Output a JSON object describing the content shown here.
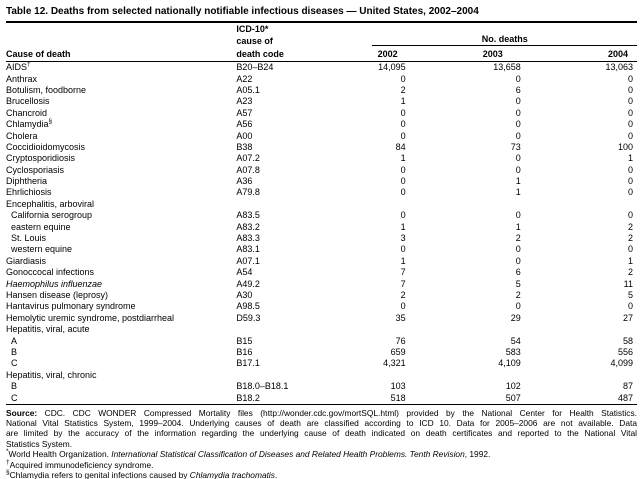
{
  "title": "Table 12. Deaths from selected nationally notifiable infectious diseases — United States, 2002–2004",
  "header": {
    "cause_col": "Cause of death",
    "code_col_line1": "ICD-10*",
    "code_col_line2": "cause of",
    "code_col_line3": "death code",
    "group": "No. deaths",
    "years": [
      "2002",
      "2003",
      "2004"
    ]
  },
  "rows": [
    {
      "cause": "AIDS",
      "sup": "†",
      "code": "B20–B24",
      "v": [
        "14,095",
        "13,658",
        "13,063"
      ]
    },
    {
      "cause": "Anthrax",
      "code": "A22",
      "v": [
        "0",
        "0",
        "0"
      ]
    },
    {
      "cause": "Botulism, foodborne",
      "code": "A05.1",
      "v": [
        "2",
        "6",
        "0"
      ]
    },
    {
      "cause": "Brucellosis",
      "code": "A23",
      "v": [
        "1",
        "0",
        "0"
      ]
    },
    {
      "cause": "Chancroid",
      "code": "A57",
      "v": [
        "0",
        "0",
        "0"
      ]
    },
    {
      "cause": "Chlamydia",
      "sup": "§",
      "code": "A56",
      "v": [
        "0",
        "0",
        "0"
      ]
    },
    {
      "cause": "Cholera",
      "code": "A00",
      "v": [
        "0",
        "0",
        "0"
      ]
    },
    {
      "cause": "Coccidioidomycosis",
      "code": "B38",
      "v": [
        "84",
        "73",
        "100"
      ]
    },
    {
      "cause": "Cryptosporidiosis",
      "code": "A07.2",
      "v": [
        "1",
        "0",
        "1"
      ]
    },
    {
      "cause": "Cyclosporiasis",
      "code": "A07.8",
      "v": [
        "0",
        "0",
        "0"
      ]
    },
    {
      "cause": "Diphtheria",
      "code": "A36",
      "v": [
        "0",
        "1",
        "0"
      ]
    },
    {
      "cause": "Ehrlichiosis",
      "code": "A79.8",
      "v": [
        "0",
        "1",
        "0"
      ]
    },
    {
      "cause": "Encephalitis, arboviral",
      "group": true
    },
    {
      "cause": "California serogroup",
      "indent": true,
      "code": "A83.5",
      "v": [
        "0",
        "0",
        "0"
      ]
    },
    {
      "cause": "eastern equine",
      "indent": true,
      "code": "A83.2",
      "v": [
        "1",
        "1",
        "2"
      ]
    },
    {
      "cause": "St. Louis",
      "indent": true,
      "code": "A83.3",
      "v": [
        "3",
        "2",
        "2"
      ]
    },
    {
      "cause": "western equine",
      "indent": true,
      "code": "A83.1",
      "v": [
        "0",
        "0",
        "0"
      ]
    },
    {
      "cause": "Giardiasis",
      "code": "A07.1",
      "v": [
        "1",
        "0",
        "1"
      ]
    },
    {
      "cause": "Gonoccocal infections",
      "code": "A54",
      "v": [
        "7",
        "6",
        "2"
      ]
    },
    {
      "cause": "Haemophilus influenzae",
      "italic": true,
      "code": "A49.2",
      "v": [
        "7",
        "5",
        "11"
      ]
    },
    {
      "cause": "Hansen disease (leprosy)",
      "code": "A30",
      "v": [
        "2",
        "2",
        "5"
      ]
    },
    {
      "cause": "Hantavirus pulmonary syndrome",
      "code": "A98.5",
      "v": [
        "0",
        "0",
        "0"
      ]
    },
    {
      "cause": "Hemolytic uremic syndrome, postdiarrheal",
      "code": "D59.3",
      "v": [
        "35",
        "29",
        "27"
      ]
    },
    {
      "cause": "Hepatitis, viral, acute",
      "group": true
    },
    {
      "cause": "A",
      "indent": true,
      "code": "B15",
      "v": [
        "76",
        "54",
        "58"
      ]
    },
    {
      "cause": "B",
      "indent": true,
      "code": "B16",
      "v": [
        "659",
        "583",
        "556"
      ]
    },
    {
      "cause": "C",
      "indent": true,
      "code": "B17.1",
      "v": [
        "4,321",
        "4,109",
        "4,099"
      ]
    },
    {
      "cause": "Hepatitis, viral, chronic",
      "group": true
    },
    {
      "cause": "B",
      "indent": true,
      "code": "B18.0–B18.1",
      "v": [
        "103",
        "102",
        "87"
      ]
    },
    {
      "cause": "C",
      "indent": true,
      "code": "B18.2",
      "v": [
        "518",
        "507",
        "487"
      ]
    }
  ],
  "source": {
    "label": "Source:",
    "line1_rest": " CDC. CDC WONDER Compressed Mortality files (http://wonder.cdc.gov/mortSQL.html) provided by the National Center for Health Statistics.",
    "line2": "National Vital Statistics System, 1999–2004. Underlying causes of death are classified according to ICD 10. Data for 2005–2006 are not available. Data",
    "line3": "are limited by the accuracy of the information regarding the underlying cause of death indicated on death certificates and reported to the National Vital",
    "line4": "Statistics System."
  },
  "footnotes": [
    {
      "symbol": "*",
      "pre": "World Health Organization. ",
      "italic": "International Statistical Classification of Diseases and Related Health Problems. Tenth Revision",
      "post": ", 1992."
    },
    {
      "symbol": "†",
      "pre": "Acquired immunodeficiency syndrome.",
      "italic": "",
      "post": ""
    },
    {
      "symbol": "§",
      "pre": "Chlamydia refers to genital infections caused by ",
      "italic": "Chlamydia trachomatis",
      "post": "."
    }
  ]
}
